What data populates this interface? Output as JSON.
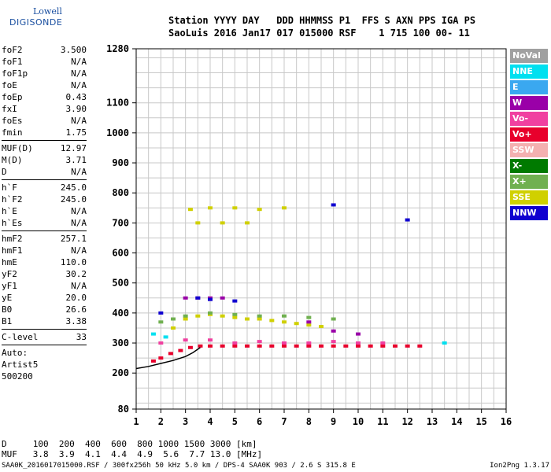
{
  "logo": {
    "line1": "Lowell",
    "line2": "DIGISONDE"
  },
  "header": {
    "line1": "Station YYYY DAY   DDD HHMMSS P1  FFS S AXN PPS IGA PS",
    "line2": "SaoLuis 2016 Jan17 017 015000 RSF    1 715 100 00- 11"
  },
  "params": [
    {
      "label": "foF2",
      "value": "3.500"
    },
    {
      "label": "foF1",
      "value": "N/A"
    },
    {
      "label": "foF1p",
      "value": "N/A"
    },
    {
      "label": "foE",
      "value": "N/A"
    },
    {
      "label": "foEp",
      "value": "0.43"
    },
    {
      "label": "fxI",
      "value": "3.90"
    },
    {
      "label": "foEs",
      "value": "N/A"
    },
    {
      "label": "fmin",
      "value": "1.75"
    },
    {
      "sep": true
    },
    {
      "label": "MUF(D)",
      "value": "12.97"
    },
    {
      "label": "M(D)",
      "value": "3.71"
    },
    {
      "label": "D",
      "value": "N/A"
    },
    {
      "sep": true
    },
    {
      "label": "h`F",
      "value": "245.0"
    },
    {
      "label": "h`F2",
      "value": "245.0"
    },
    {
      "label": "h`E",
      "value": "N/A"
    },
    {
      "label": "h`Es",
      "value": "N/A"
    },
    {
      "sep": true
    },
    {
      "label": "hmF2",
      "value": "257.1"
    },
    {
      "label": "hmF1",
      "value": "N/A"
    },
    {
      "label": "hmE",
      "value": "110.0"
    },
    {
      "label": "yF2",
      "value": "30.2"
    },
    {
      "label": "yF1",
      "value": "N/A"
    },
    {
      "label": "yE",
      "value": "20.0"
    },
    {
      "label": "B0",
      "value": "26.6"
    },
    {
      "label": "B1",
      "value": "3.38"
    },
    {
      "sep": true
    },
    {
      "label": "C-level",
      "value": "33"
    },
    {
      "sep": true
    },
    {
      "plain": "Auto:"
    },
    {
      "plain": "Artist5"
    },
    {
      "plain": "500200"
    }
  ],
  "legend": [
    {
      "label": "NoVal",
      "color": "#a0a0a0"
    },
    {
      "label": "NNE",
      "color": "#00e0f0"
    },
    {
      "label": "E",
      "color": "#3aa8f0"
    },
    {
      "label": "W",
      "color": "#9a00a8"
    },
    {
      "label": "Vo-",
      "color": "#f040a0"
    },
    {
      "label": "Vo+",
      "color": "#e8002c"
    },
    {
      "label": "SSW",
      "color": "#f4b0b0"
    },
    {
      "label": "X-",
      "color": "#007a00"
    },
    {
      "label": "X+",
      "color": "#70b050"
    },
    {
      "label": "SSE",
      "color": "#d0d000"
    },
    {
      "label": "NNW",
      "color": "#1000d0"
    }
  ],
  "footer": {
    "line1": "D     100  200  400  600  800 1000 1500 3000 [km]",
    "line2": "MUF   3.8  3.9  4.1  4.4  4.9  5.6  7.7 13.0 [MHz]"
  },
  "bottom": {
    "left": "SAA0K_2016017015000.RSF / 300fx256h 50 kHz 5.0 km / DPS-4 SAA0K 903 / 2.6 S 315.8 E",
    "right": "Ion2Png 1.3.17"
  },
  "chart_data": {
    "type": "scatter",
    "xlabel": "",
    "ylabel": "",
    "xlim": [
      1,
      16
    ],
    "ylim": [
      80,
      1280
    ],
    "xticks": [
      1,
      2,
      3,
      4,
      5,
      6,
      7,
      8,
      9,
      10,
      11,
      12,
      13,
      14,
      15,
      16
    ],
    "yticks": [
      80,
      200,
      300,
      400,
      500,
      600,
      700,
      800,
      900,
      1000,
      1100,
      1280
    ],
    "grid": true,
    "series": [
      {
        "name": "Vo+",
        "color": "#e8002c",
        "x": [
          1.7,
          2.0,
          2.4,
          2.8,
          3.2,
          3.6,
          4.0,
          4.5,
          5.0,
          5.5,
          6.0,
          6.5,
          7.0,
          7.5,
          8.0,
          8.5,
          9.0,
          9.5,
          10.0,
          10.5,
          11.0,
          11.5,
          12.0,
          12.5
        ],
        "y": [
          240,
          250,
          265,
          275,
          285,
          290,
          290,
          290,
          290,
          290,
          290,
          290,
          290,
          290,
          290,
          290,
          290,
          290,
          290,
          290,
          290,
          290,
          290,
          290
        ]
      },
      {
        "name": "Vo-",
        "color": "#f040a0",
        "x": [
          2.0,
          3.0,
          4.0,
          5.0,
          6.0,
          7.0,
          8.0,
          9.0,
          10.0,
          11.0
        ],
        "y": [
          300,
          310,
          310,
          300,
          305,
          300,
          300,
          305,
          300,
          300
        ]
      },
      {
        "name": "SSE",
        "color": "#d0d000",
        "x": [
          2.5,
          3.0,
          3.5,
          4.0,
          4.5,
          5.0,
          5.5,
          6.0,
          6.5,
          7.0,
          7.5,
          8.0,
          8.5,
          3.2,
          4.0,
          5.0,
          6.0,
          7.0,
          3.5,
          4.5,
          5.5
        ],
        "y": [
          350,
          380,
          390,
          395,
          390,
          385,
          380,
          380,
          375,
          370,
          365,
          360,
          355,
          745,
          750,
          750,
          745,
          750,
          700,
          700,
          700
        ]
      },
      {
        "name": "W",
        "color": "#9a00a8",
        "x": [
          3.0,
          3.5,
          4.0,
          4.5,
          8.0,
          9.0,
          10.0
        ],
        "y": [
          450,
          450,
          450,
          450,
          370,
          340,
          330
        ]
      },
      {
        "name": "NNW",
        "color": "#1000d0",
        "x": [
          2.0,
          3.5,
          4.0,
          5.0,
          9.0,
          12.0
        ],
        "y": [
          400,
          450,
          445,
          440,
          760,
          710
        ]
      },
      {
        "name": "X+",
        "color": "#70b050",
        "x": [
          2.0,
          2.5,
          3.0,
          4.0,
          5.0,
          6.0,
          7.0,
          8.0,
          9.0
        ],
        "y": [
          370,
          380,
          390,
          400,
          395,
          390,
          390,
          385,
          380
        ]
      },
      {
        "name": "NNE",
        "color": "#00e0f0",
        "x": [
          1.7,
          2.2,
          13.5
        ],
        "y": [
          330,
          320,
          300
        ]
      }
    ],
    "trace": {
      "x": [
        1.0,
        1.5,
        2.0,
        2.5,
        3.0,
        3.3,
        3.6
      ],
      "y": [
        215,
        222,
        232,
        242,
        255,
        268,
        285
      ]
    }
  }
}
